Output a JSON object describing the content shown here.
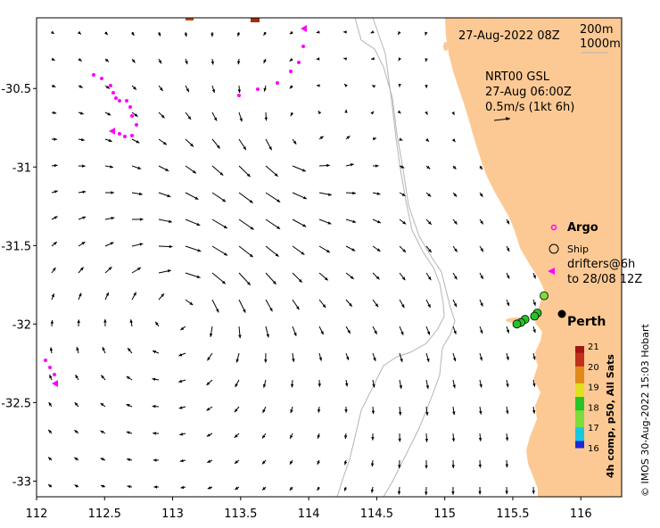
{
  "map": {
    "timestamp": "27-Aug-2022 08Z",
    "depth_legend": [
      "200m",
      "1000m"
    ],
    "product": {
      "line1": "NRT00 GSL",
      "line2": "27-Aug 06:00Z",
      "line3": "0.5m/s (1kt 6h)"
    },
    "legend": {
      "argo": "Argo",
      "ship": "Ship",
      "drifters_line1": "drifters@6h",
      "drifters_line2": "to 28/08 12Z"
    },
    "place": "Perth",
    "colorbar": {
      "title": "4h comp, p50, All Sats",
      "ticks": [
        "21",
        "20",
        "19",
        "18",
        "17",
        "16"
      ]
    },
    "credit": "© IMOS 30-Aug-2022 15:03 Hobart",
    "x_ticks": [
      "112",
      "112.5",
      "113",
      "113.5",
      "114",
      "114.5",
      "115",
      "115.5",
      "116"
    ],
    "y_ticks": [
      "-30.5",
      "-31",
      "-31.5",
      "-32",
      "-32.5",
      "-33"
    ],
    "extent": {
      "lon": [
        112,
        116.3
      ],
      "lat": [
        -33.1,
        -30.05
      ]
    },
    "colors": {
      "land": "#fcc994",
      "isobath": "#b4b4b4",
      "drifter": "#ff00ff",
      "sst_scale": [
        "#1a2ad6",
        "#18c8e0",
        "#7ddc3c",
        "#27c427",
        "#e0e020",
        "#e08a1a",
        "#c0301a",
        "#a31414"
      ]
    },
    "sst_points": [
      {
        "lon": 115.73,
        "lat": -31.82,
        "sst": 17.2
      },
      {
        "lon": 115.68,
        "lat": -31.93,
        "sst": 18.3
      },
      {
        "lon": 115.66,
        "lat": -31.95,
        "sst": 18.1
      },
      {
        "lon": 115.59,
        "lat": -31.97,
        "sst": 18.0
      },
      {
        "lon": 115.56,
        "lat": -31.99,
        "sst": 18.2
      },
      {
        "lon": 115.53,
        "lat": -32.0,
        "sst": 18.0
      }
    ]
  }
}
